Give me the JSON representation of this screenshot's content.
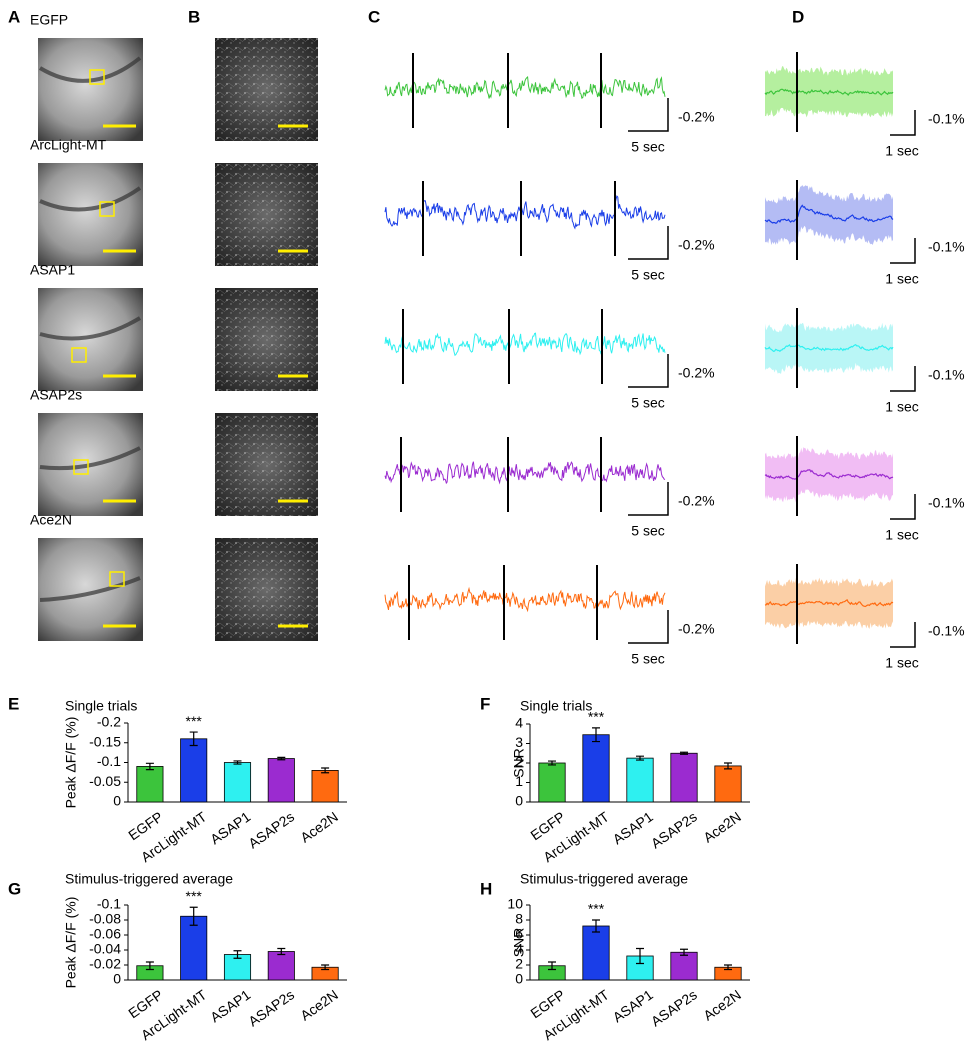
{
  "panels": [
    "A",
    "B",
    "C",
    "D",
    "E",
    "F",
    "G",
    "H"
  ],
  "rows": [
    {
      "name": "EGFP",
      "color": "#3cc43c",
      "band": "#b5ef9f",
      "trace_y_scale": "-0.2%",
      "trace_x_scale": "5 sec",
      "avg_y_scale": "-0.1%",
      "avg_x_scale": "1 sec"
    },
    {
      "name": "ArcLight-MT",
      "color": "#1a3ee8",
      "band": "#b4bcf4",
      "trace_y_scale": "-0.2%",
      "trace_x_scale": "5 sec",
      "avg_y_scale": "-0.1%",
      "avg_x_scale": "1 sec"
    },
    {
      "name": "ASAP1",
      "color": "#2ef0f0",
      "band": "#b9f6f6",
      "trace_y_scale": "-0.2%",
      "trace_x_scale": "5 sec",
      "avg_y_scale": "-0.1%",
      "avg_x_scale": "1 sec"
    },
    {
      "name": "ASAP2s",
      "color": "#9b2bd0",
      "band": "#f1bdf4",
      "trace_y_scale": "-0.2%",
      "trace_x_scale": "5 sec",
      "avg_y_scale": "-0.1%",
      "avg_x_scale": "1 sec"
    },
    {
      "name": "Ace2N",
      "color": "#ff6a10",
      "band": "#fbcfa6",
      "trace_y_scale": "-0.2%",
      "trace_x_scale": "5 sec",
      "avg_y_scale": "-0.1%",
      "avg_x_scale": "1 sec"
    }
  ],
  "chart_data": [
    {
      "type": "bar",
      "title": "Single trials",
      "ylabel": "Peak ΔF/F (%)",
      "annotation": "***",
      "categories": [
        "EGFP",
        "ArcLight-MT",
        "ASAP1",
        "ASAP2s",
        "Ace2N"
      ],
      "colors": [
        "#3cc43c",
        "#1a3ee8",
        "#2ef0f0",
        "#9b2bd0",
        "#ff6a10"
      ],
      "values": [
        -0.09,
        -0.16,
        -0.1,
        -0.11,
        -0.08
      ],
      "errors": [
        0.008,
        0.017,
        0.004,
        0.003,
        0.006
      ],
      "ylim": [
        0,
        -0.2
      ],
      "yticks": [
        0,
        -0.05,
        -0.1,
        -0.15,
        -0.2
      ]
    },
    {
      "type": "bar",
      "title": "Single trials",
      "ylabel": "SNR",
      "annotation": "***",
      "categories": [
        "EGFP",
        "ArcLight-MT",
        "ASAP1",
        "ASAP2s",
        "Ace2N"
      ],
      "colors": [
        "#3cc43c",
        "#1a3ee8",
        "#2ef0f0",
        "#9b2bd0",
        "#ff6a10"
      ],
      "values": [
        2.0,
        3.45,
        2.25,
        2.5,
        1.85
      ],
      "errors": [
        0.1,
        0.35,
        0.1,
        0.05,
        0.15
      ],
      "ylim": [
        0,
        4
      ],
      "yticks": [
        0,
        1,
        2,
        3,
        4
      ]
    },
    {
      "type": "bar",
      "title": "Stimulus-triggered average",
      "ylabel": "Peak ΔF/F (%)",
      "annotation": "***",
      "categories": [
        "EGFP",
        "ArcLight-MT",
        "ASAP1",
        "ASAP2s",
        "Ace2N"
      ],
      "colors": [
        "#3cc43c",
        "#1a3ee8",
        "#2ef0f0",
        "#9b2bd0",
        "#ff6a10"
      ],
      "values": [
        -0.019,
        -0.085,
        -0.034,
        -0.038,
        -0.017
      ],
      "errors": [
        0.005,
        0.012,
        0.005,
        0.004,
        0.003
      ],
      "ylim": [
        0,
        -0.1
      ],
      "yticks": [
        0,
        -0.02,
        -0.04,
        -0.06,
        -0.08,
        -0.1
      ]
    },
    {
      "type": "bar",
      "title": "Stimulus-triggered average",
      "ylabel": "SNR",
      "annotation": "***",
      "categories": [
        "EGFP",
        "ArcLight-MT",
        "ASAP1",
        "ASAP2s",
        "Ace2N"
      ],
      "colors": [
        "#3cc43c",
        "#1a3ee8",
        "#2ef0f0",
        "#9b2bd0",
        "#ff6a10"
      ],
      "values": [
        1.9,
        7.2,
        3.2,
        3.7,
        1.7
      ],
      "errors": [
        0.5,
        0.8,
        1.0,
        0.4,
        0.3
      ],
      "ylim": [
        0,
        10
      ],
      "yticks": [
        0,
        2,
        4,
        6,
        8,
        10
      ]
    }
  ]
}
